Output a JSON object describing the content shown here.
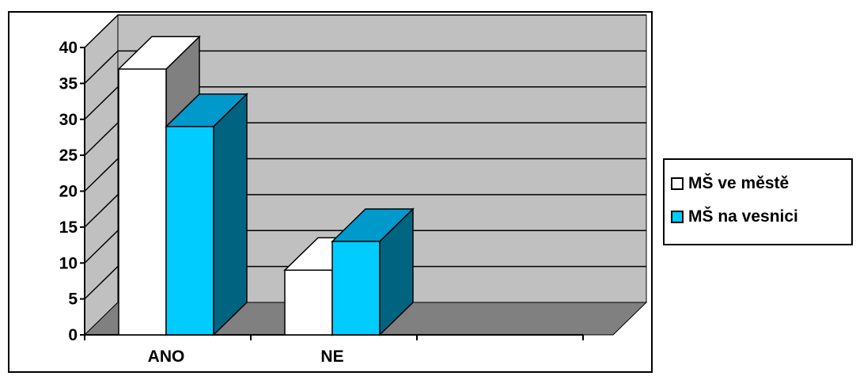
{
  "chart_data": {
    "type": "bar",
    "categories": [
      "ANO",
      "NE"
    ],
    "series": [
      {
        "name": "MŠ ve městě",
        "values": [
          37,
          9
        ],
        "color": "#ffffff",
        "top_color": "#ffffff",
        "side_color": "#808080"
      },
      {
        "name": "MŠ na vesnici",
        "values": [
          29,
          13
        ],
        "color": "#00ccff",
        "top_color": "#0099cc",
        "side_color": "#006480"
      }
    ],
    "ylim": [
      0,
      40
    ],
    "yticks": [
      "0",
      "5",
      "10",
      "15",
      "20",
      "25",
      "30",
      "35",
      "40"
    ],
    "grid": true,
    "legend": "right",
    "wall_color": "#c0c0c0",
    "floor_color": "#808080"
  }
}
